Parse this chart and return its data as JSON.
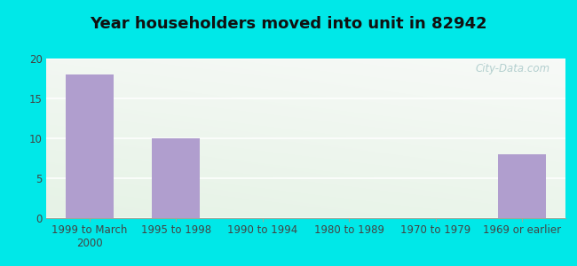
{
  "title": "Year householders moved into unit in 82942",
  "categories": [
    "1999 to March\n2000",
    "1995 to 1998",
    "1990 to 1994",
    "1980 to 1989",
    "1970 to 1979",
    "1969 or earlier"
  ],
  "values": [
    18,
    10,
    0,
    0,
    0,
    8
  ],
  "bar_color": "#b09ece",
  "background_outer": "#00e8e8",
  "ylim": [
    0,
    20
  ],
  "yticks": [
    0,
    5,
    10,
    15,
    20
  ],
  "title_fontsize": 13,
  "tick_fontsize": 8.5,
  "watermark": "City-Data.com",
  "grid_color": "#ccddcc",
  "spine_color": "#99bbaa"
}
